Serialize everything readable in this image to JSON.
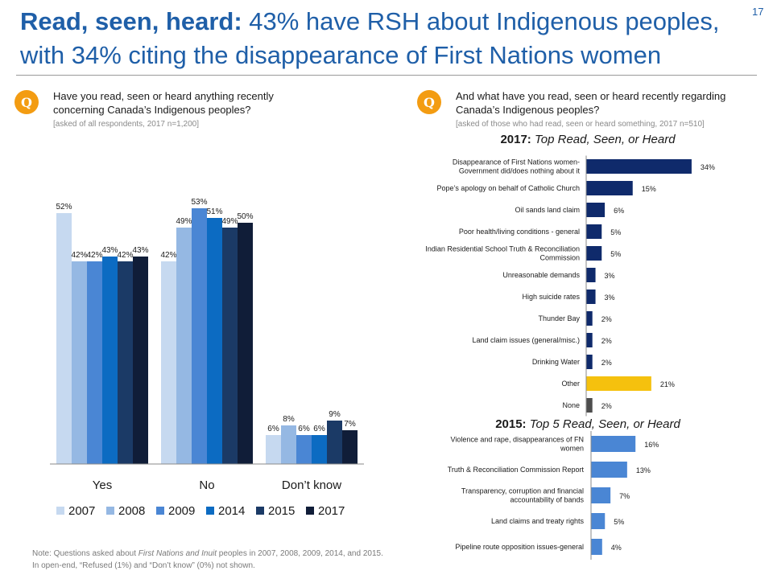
{
  "header": {
    "title_bold": "Read, seen, heard:",
    "title_line1_rest": " 43% have RSH about Indigenous peoples,",
    "title_line2": "with 34% citing the disappearance of First Nations women",
    "slide_number": "17"
  },
  "left_question": {
    "badge": "Q",
    "line1": "Have you read, seen or heard anything recently",
    "line2": "concerning Canada’s Indigenous peoples?",
    "base": "[asked of all respondents, 2017 n=1,200]"
  },
  "right_question": {
    "badge": "Q",
    "line1": "And what have you read, seen or heard recently regarding",
    "line2": "Canada’s Indigenous peoples?",
    "base": "[asked of those who had read, seen or heard something, 2017 n=510]"
  },
  "chart_2017_title": {
    "year": "2017:",
    "rest": " Top  Read, Seen, or Heard"
  },
  "chart_2015_title": {
    "year": "2015:",
    "rest": " Top 5 Read, Seen, or Heard"
  },
  "note": {
    "prefix": "Note:   Questions asked about ",
    "italic": "First Nations and Inuit",
    "suffix": " peoples in 2007, 2008, 2009, 2014, and 2015. In open-end, “Refused (1%) and “Don’t know” (0%) not shown."
  },
  "chart_data": [
    {
      "type": "bar",
      "categories": [
        "Yes",
        "No",
        "Don’t know"
      ],
      "series": [
        {
          "name": "2007",
          "values": [
            52,
            42,
            6
          ],
          "color": "#c6d9f0"
        },
        {
          "name": "2008",
          "values": [
            42,
            49,
            8
          ],
          "color": "#95b8e3"
        },
        {
          "name": "2009",
          "values": [
            42,
            53,
            6
          ],
          "color": "#4a86d4"
        },
        {
          "name": "2014",
          "values": [
            43,
            51,
            6
          ],
          "color": "#0c6bc2"
        },
        {
          "name": "2015",
          "values": [
            42,
            49,
            9
          ],
          "color": "#1b3a66"
        },
        {
          "name": "2017",
          "values": [
            43,
            50,
            7
          ],
          "color": "#101d38"
        }
      ],
      "ylim": [
        0,
        60
      ],
      "value_suffix": "%",
      "legend": "bottom",
      "grid": false
    },
    {
      "type": "bar",
      "orientation": "horizontal",
      "categories": [
        [
          "Disappearance of First Nations women-",
          "Government did/does nothing about it"
        ],
        [
          "Pope’s apology on behalf of Catholic Church"
        ],
        [
          "Oil sands land claim"
        ],
        [
          "Poor health/living conditions - general"
        ],
        [
          "Indian Residential School Truth & Reconciliation",
          "Commission"
        ],
        [
          "Unreasonable demands"
        ],
        [
          "High suicide rates"
        ],
        [
          "Thunder Bay"
        ],
        [
          "Land claim issues (general/misc.)"
        ],
        [
          "Drinking Water"
        ],
        [
          "Other"
        ],
        [
          "None"
        ]
      ],
      "values": [
        34,
        15,
        6,
        5,
        5,
        3,
        3,
        2,
        2,
        2,
        21,
        2
      ],
      "colors": [
        "#0f2a6b",
        "#0f2a6b",
        "#0f2a6b",
        "#0f2a6b",
        "#0f2a6b",
        "#0f2a6b",
        "#0f2a6b",
        "#0f2a6b",
        "#0f2a6b",
        "#0f2a6b",
        "#f5c10e",
        "#4d4d4d"
      ],
      "value_suffix": "%",
      "xlim": [
        0,
        34
      ]
    },
    {
      "type": "bar",
      "orientation": "horizontal",
      "categories": [
        [
          "Violence and rape, disappearances of FN",
          "women"
        ],
        [
          "Truth & Reconciliation Commission Report"
        ],
        [
          "Transparency, corruption and financial",
          "accountability of bands"
        ],
        [
          "Land claims and treaty rights"
        ],
        [
          "Pipeline route opposition issues-general"
        ]
      ],
      "values": [
        16,
        13,
        7,
        5,
        4
      ],
      "colors": [
        "#4a86d4",
        "#4a86d4",
        "#4a86d4",
        "#4a86d4",
        "#4a86d4"
      ],
      "value_suffix": "%",
      "xlim": [
        0,
        34
      ]
    }
  ]
}
